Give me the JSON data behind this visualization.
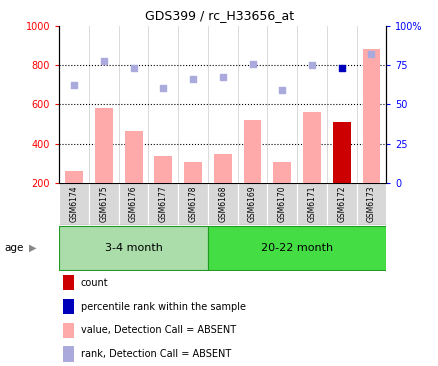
{
  "title": "GDS399 / rc_H33656_at",
  "samples": [
    "GSM6174",
    "GSM6175",
    "GSM6176",
    "GSM6177",
    "GSM6178",
    "GSM6168",
    "GSM6169",
    "GSM6170",
    "GSM6171",
    "GSM6172",
    "GSM6173"
  ],
  "groups": [
    {
      "label": "3-4 month",
      "start": 0,
      "end": 4,
      "color": "#aaddaa"
    },
    {
      "label": "20-22 month",
      "start": 5,
      "end": 10,
      "color": "#44dd44"
    }
  ],
  "bar_values": [
    260,
    580,
    465,
    335,
    305,
    345,
    520,
    308,
    560,
    510,
    880
  ],
  "bar_colors": [
    "#ffaaaa",
    "#ffaaaa",
    "#ffaaaa",
    "#ffaaaa",
    "#ffaaaa",
    "#ffaaaa",
    "#ffaaaa",
    "#ffaaaa",
    "#ffaaaa",
    "#cc0000",
    "#ffaaaa"
  ],
  "dot_values": [
    700,
    820,
    785,
    685,
    730,
    740,
    805,
    675,
    800,
    785,
    855
  ],
  "dot_colors": [
    "#aaaadd",
    "#aaaadd",
    "#aaaadd",
    "#aaaadd",
    "#aaaadd",
    "#aaaadd",
    "#aaaadd",
    "#aaaadd",
    "#aaaadd",
    "#0000bb",
    "#aaaadd"
  ],
  "ylim_left": [
    200,
    1000
  ],
  "ylim_right": [
    0,
    100
  ],
  "yticks_left": [
    200,
    400,
    600,
    800,
    1000
  ],
  "ytick_labels_left": [
    "200",
    "400",
    "600",
    "800",
    "1000"
  ],
  "yticks_right": [
    0,
    25,
    50,
    75,
    100
  ],
  "ytick_labels_right": [
    "0",
    "25",
    "50",
    "75",
    "100%"
  ],
  "hlines": [
    400,
    600,
    800
  ],
  "age_label": "age",
  "legend_items": [
    {
      "color": "#cc0000",
      "label": "count"
    },
    {
      "color": "#0000bb",
      "label": "percentile rank within the sample"
    },
    {
      "color": "#ffaaaa",
      "label": "value, Detection Call = ABSENT"
    },
    {
      "color": "#aaaadd",
      "label": "rank, Detection Call = ABSENT"
    }
  ]
}
